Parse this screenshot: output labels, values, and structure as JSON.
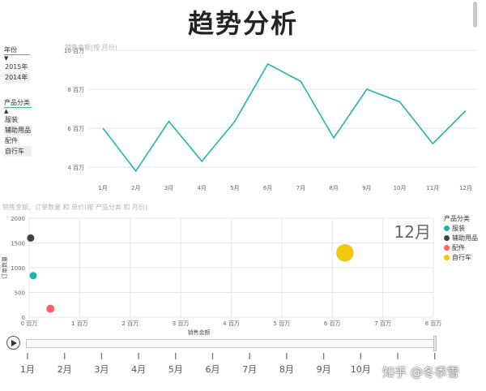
{
  "page": {
    "title": "趋势分析"
  },
  "slicers": {
    "year": {
      "title": "年份",
      "caret": "▼",
      "items": [
        "2015年",
        "2014年"
      ]
    },
    "category": {
      "title": "产品分类",
      "caret": "▲",
      "items": [
        "服装",
        "辅助用品",
        "配件",
        "自行车"
      ]
    }
  },
  "line_chart": {
    "title": "销售金额(按 月份)"
  },
  "bubble_chart": {
    "title": "销售金额、订单数量 和 单价(按 产品分类 和 月份)",
    "current_frame": "12月",
    "legend_title": "产品分类"
  },
  "play_axis": {
    "labels": [
      "1月",
      "2月",
      "3月",
      "4月",
      "5月",
      "6月",
      "7月",
      "8月",
      "9月",
      "10月"
    ]
  },
  "watermark": "知乎 @冬季雪",
  "colors": {
    "accent": "#3fb2ac",
    "line": "#1fb5ad",
    "grid": "#e6e6e6"
  },
  "chart_data": [
    {
      "type": "line",
      "title": "销售金额(按 月份)",
      "x": [
        "1月",
        "2月",
        "3月",
        "4月",
        "5月",
        "6月",
        "7月",
        "8月",
        "9月",
        "10月",
        "11月",
        "12月"
      ],
      "series": [
        {
          "values": [
            6.0,
            3.8,
            6.35,
            4.3,
            6.35,
            9.3,
            8.4,
            5.5,
            8.0,
            7.35,
            5.2,
            6.9
          ]
        }
      ],
      "y_ticks": [
        "4 百万",
        "6 百万",
        "8 百万",
        "10 百万"
      ],
      "y_tick_values": [
        4,
        6,
        8,
        10
      ],
      "ylim": [
        3.5,
        10
      ],
      "unit": "百万",
      "grid": true,
      "color": "#1fb5ad"
    },
    {
      "type": "scatter",
      "title": "销售金额、订单数量 和 单价(按 产品分类 和 月份)",
      "xlabel": "销售金额",
      "ylabel": "订单数量",
      "x_ticks": [
        "0 百万",
        "1 百万",
        "2 百万",
        "3 百万",
        "4 百万",
        "5 百万",
        "6 百万",
        "7 百万",
        "8 百万"
      ],
      "x_tick_values": [
        0,
        1,
        2,
        3,
        4,
        5,
        6,
        7,
        8
      ],
      "y_ticks": [
        "0",
        "500",
        "1000",
        "1500",
        "2000"
      ],
      "y_tick_values": [
        0,
        500,
        1000,
        1500,
        2000
      ],
      "xlim": [
        0,
        8
      ],
      "ylim": [
        0,
        2000
      ],
      "grid": true,
      "legend_position": "right",
      "series": [
        {
          "name": "服装",
          "color": "#1fb5ad",
          "x": 0.08,
          "y": 840,
          "size": 1
        },
        {
          "name": "辅助用品",
          "color": "#374649",
          "x": 0.03,
          "y": 1600,
          "size": 1
        },
        {
          "name": "配件",
          "color": "#fd625e",
          "x": 0.42,
          "y": 170,
          "size": 1.1
        },
        {
          "name": "自行车",
          "color": "#f2c80f",
          "x": 6.25,
          "y": 1300,
          "size": 2.4
        }
      ]
    }
  ]
}
